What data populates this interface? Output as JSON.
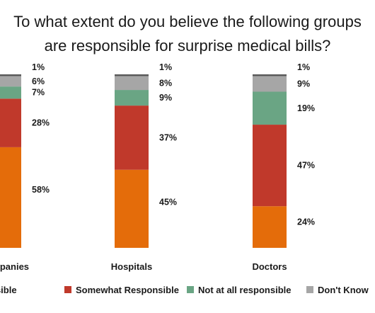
{
  "chart_data": {
    "type": "bar",
    "stacked": true,
    "title_lines": [
      "To what extent do you believe the following groups",
      "are responsible for surprise medical bills?"
    ],
    "categories": [
      "Companies",
      "Hospitals",
      "Doctors"
    ],
    "ylim": [
      0,
      100
    ],
    "grid": false,
    "legend_position": "bottom",
    "series": [
      {
        "name": "nsible",
        "color": "#e46c0a",
        "values": [
          58,
          45,
          24
        ],
        "labels": [
          "58%",
          "45%",
          "24%"
        ]
      },
      {
        "name": "Somewhat Responsible",
        "color": "#c0392b",
        "values": [
          28,
          37,
          47
        ],
        "labels": [
          "28%",
          "37%",
          "47%"
        ]
      },
      {
        "name": "Not at all responsible",
        "color": "#6aa584",
        "values": [
          7,
          9,
          19
        ],
        "labels": [
          "7%",
          "9%",
          "19%"
        ]
      },
      {
        "name": "Don't Know",
        "color": "#a6a6a6",
        "values": [
          6,
          8,
          9
        ],
        "labels": [
          "6%",
          "8%",
          "9%"
        ]
      },
      {
        "name": "",
        "color": "#595959",
        "values": [
          1,
          1,
          1
        ],
        "labels": [
          "1%",
          "1%",
          "1%"
        ]
      }
    ]
  }
}
